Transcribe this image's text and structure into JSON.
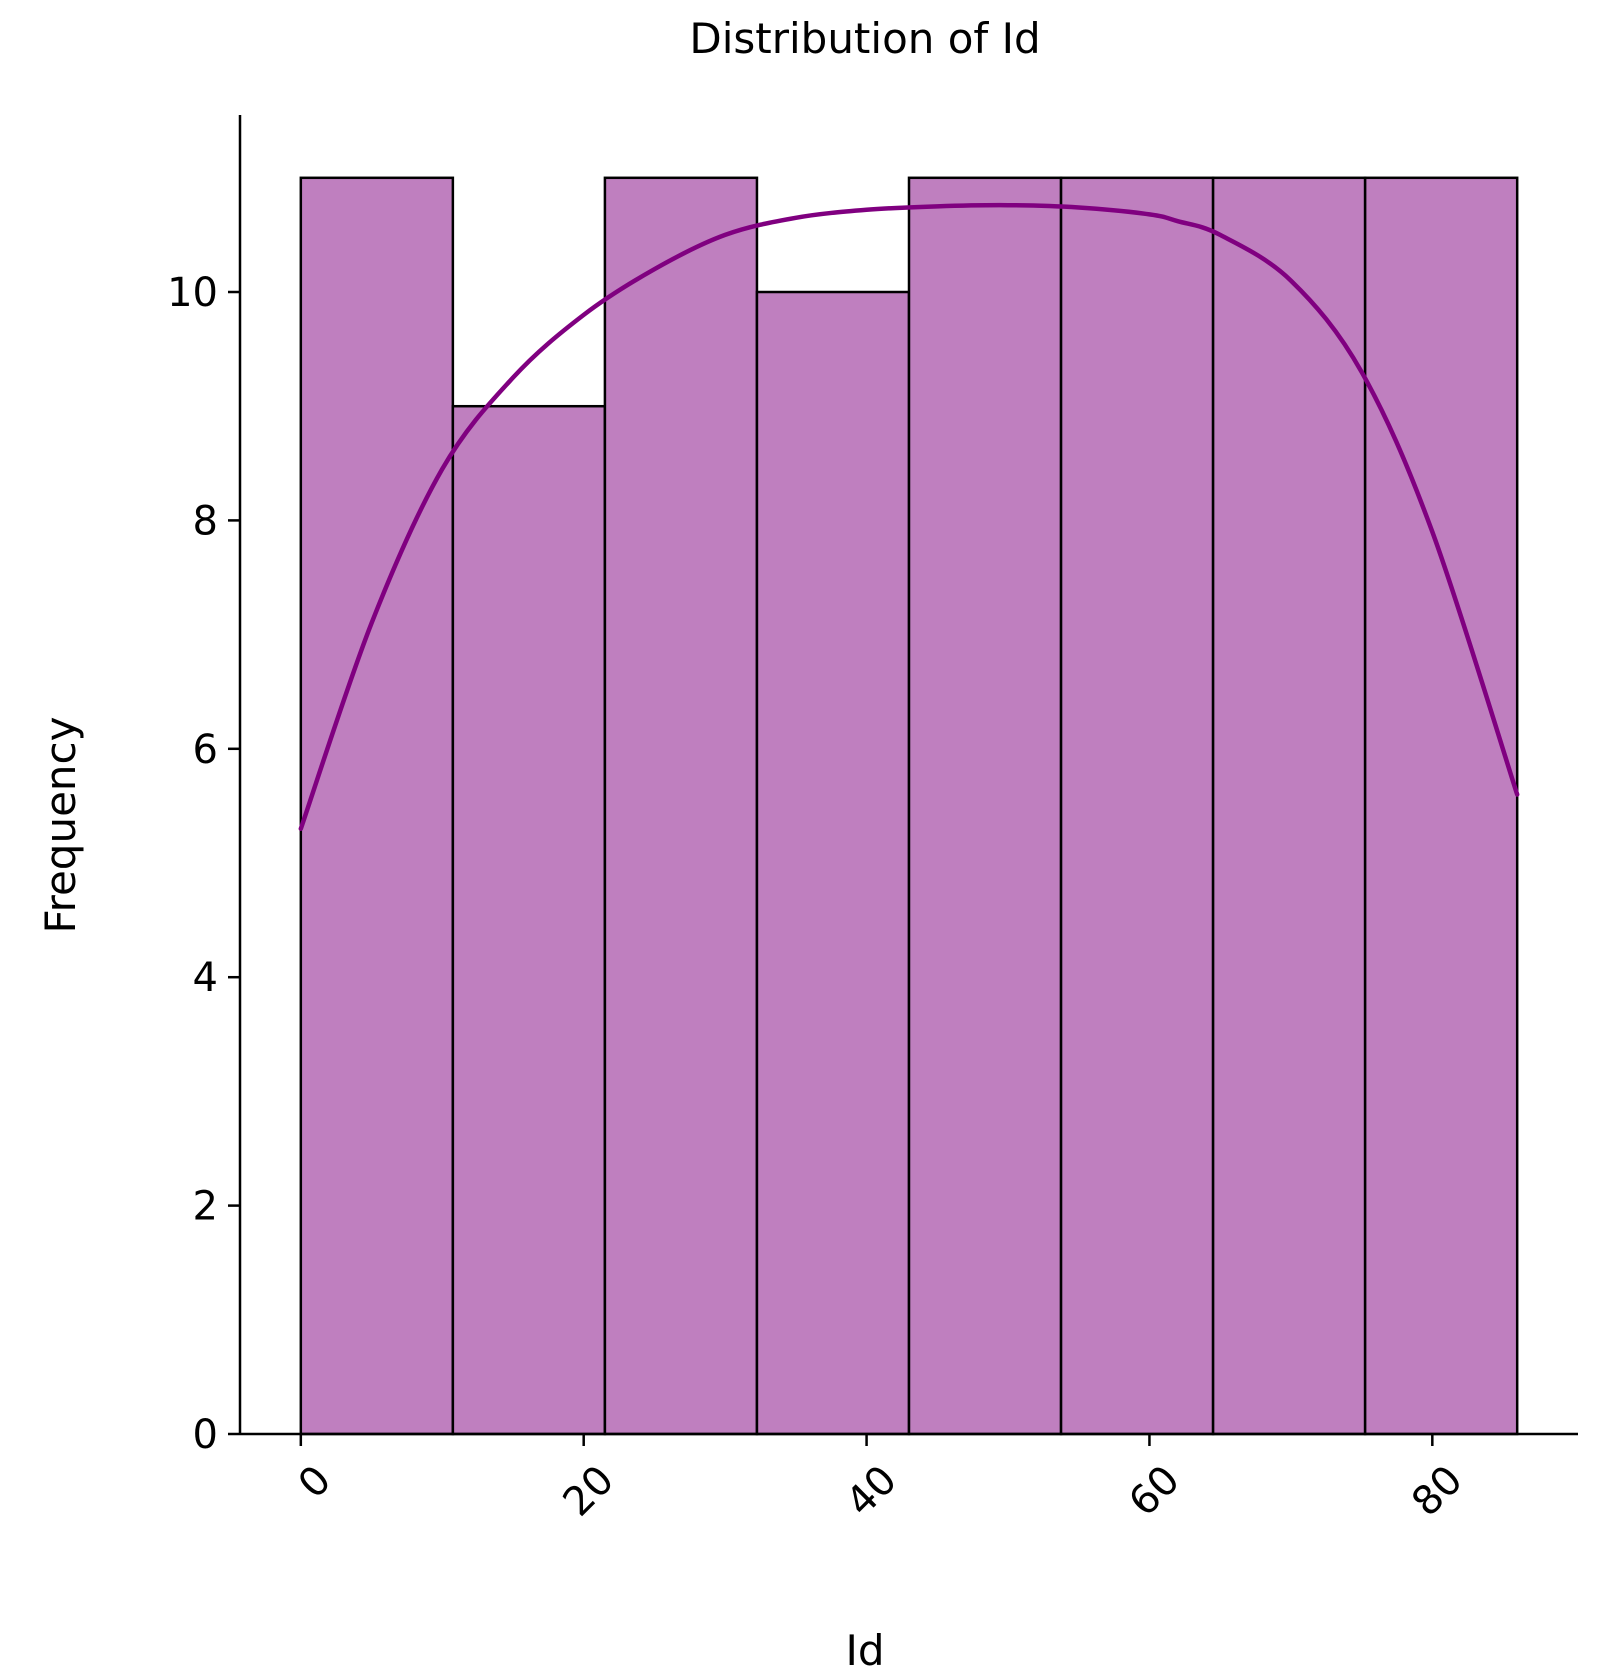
{
  "chart_data": {
    "type": "bar",
    "title": "Distribution of Id",
    "xlabel": "Id",
    "ylabel": "Frequency",
    "xlim": [
      -4.3,
      90.3
    ],
    "ylim": [
      0,
      11.55
    ],
    "xticks": [
      0,
      20,
      40,
      60,
      80
    ],
    "yticks": [
      0,
      2,
      4,
      6,
      8,
      10
    ],
    "bin_edges": [
      0,
      10.75,
      21.5,
      32.25,
      43,
      53.75,
      64.5,
      75.25,
      86
    ],
    "values": [
      11,
      9,
      11,
      10,
      11,
      11,
      11,
      11
    ],
    "kde": {
      "x": [
        0,
        5,
        10,
        15,
        20,
        25,
        30,
        35,
        40,
        45,
        50,
        55,
        60,
        62,
        65,
        70,
        75,
        80,
        86
      ],
      "y": [
        5.3,
        7.1,
        8.45,
        9.25,
        9.8,
        10.2,
        10.5,
        10.65,
        10.72,
        10.75,
        10.76,
        10.74,
        10.68,
        10.62,
        10.5,
        10.1,
        9.3,
        7.9,
        5.6
      ]
    },
    "bar_color": "#bf7fbf",
    "kde_color": "#800080",
    "grid": false
  }
}
